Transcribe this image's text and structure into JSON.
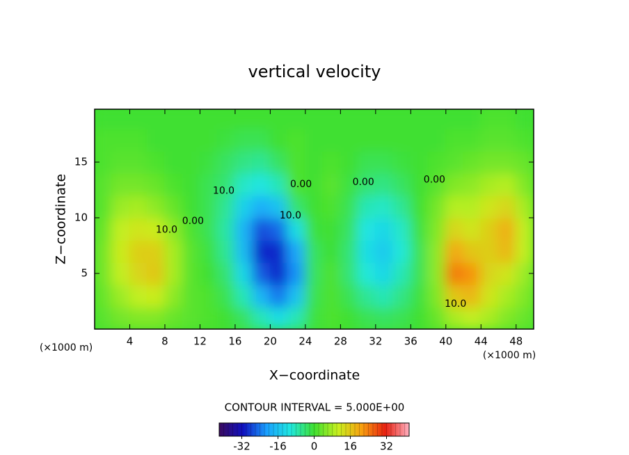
{
  "chart_data": {
    "type": "heatmap",
    "title": "vertical velocity",
    "xlabel": "X−coordinate",
    "ylabel": "Z−coordinate",
    "x_unit": "(×1000 m)",
    "y_unit": "(×1000 m)",
    "annotation": "CONTOUR INTERVAL = 5.000E+00",
    "xlim": [
      0,
      50
    ],
    "ylim": [
      0,
      19.75
    ],
    "xticks": [
      4,
      8,
      12,
      16,
      20,
      24,
      28,
      32,
      36,
      40,
      44,
      48
    ],
    "yticks": [
      5,
      10,
      15
    ],
    "x": [
      1,
      3,
      5,
      7,
      9,
      11,
      13,
      15,
      17,
      19,
      21,
      23,
      25,
      27,
      29,
      31,
      33,
      35,
      37,
      39,
      41,
      43,
      45,
      47,
      49
    ],
    "z": [
      1,
      3,
      5,
      7,
      9,
      11,
      13,
      15,
      17,
      19
    ],
    "cell_size": [
      2,
      2
    ],
    "values": [
      [
        2,
        4,
        5,
        5,
        3,
        2,
        1,
        0,
        -3,
        -8,
        -12,
        -8,
        -1,
        1,
        0,
        -2,
        -3,
        -2,
        0,
        3,
        8,
        10,
        8,
        5,
        3
      ],
      [
        3,
        7,
        10,
        11,
        6,
        2,
        1,
        -2,
        -8,
        -18,
        -24,
        -16,
        -2,
        1,
        -2,
        -6,
        -8,
        -5,
        -1,
        5,
        16,
        18,
        12,
        8,
        5
      ],
      [
        4,
        10,
        14,
        16,
        8,
        2,
        0,
        -4,
        -13,
        -26,
        -30,
        -22,
        -3,
        1,
        -4,
        -10,
        -13,
        -8,
        -2,
        6,
        24,
        22,
        14,
        12,
        7
      ],
      [
        4,
        11,
        15,
        15,
        8,
        2,
        -1,
        -6,
        -17,
        -30,
        -30,
        -20,
        -3,
        0,
        -4,
        -12,
        -15,
        -10,
        -2,
        6,
        20,
        16,
        15,
        18,
        10
      ],
      [
        3,
        10,
        12,
        11,
        6,
        1,
        -2,
        -7,
        -18,
        -27,
        -25,
        -12,
        -1,
        0,
        -3,
        -11,
        -13,
        -9,
        -1,
        5,
        14,
        12,
        15,
        19,
        10
      ],
      [
        2,
        7,
        8,
        6,
        3,
        0,
        -2,
        -6,
        -14,
        -19,
        -16,
        -4,
        0,
        1,
        -2,
        -8,
        -9,
        -6,
        0,
        4,
        9,
        9,
        12,
        14,
        8
      ],
      [
        2,
        4,
        4,
        3,
        1,
        0,
        -2,
        -4,
        -9,
        -11,
        -8,
        1,
        0,
        2,
        -1,
        -4,
        -5,
        -3,
        0,
        2,
        5,
        6,
        8,
        9,
        5
      ],
      [
        1,
        2,
        2,
        1,
        0,
        0,
        -1,
        -3,
        -5,
        -6,
        -3,
        1,
        0,
        1,
        0,
        -2,
        -2,
        -1,
        0,
        1,
        2,
        3,
        4,
        4,
        3
      ],
      [
        1,
        1,
        1,
        0,
        0,
        0,
        0,
        -1,
        -2,
        -2,
        0,
        1,
        0,
        0,
        0,
        0,
        0,
        0,
        0,
        0,
        1,
        1,
        2,
        2,
        1
      ],
      [
        0,
        0,
        0,
        0,
        0,
        0,
        0,
        0,
        0,
        0,
        0,
        0,
        0,
        0,
        0,
        0,
        0,
        0,
        0,
        0,
        0,
        0,
        1,
        1,
        0
      ]
    ],
    "contour_labels": [
      {
        "text": "10.0",
        "x": 8.2,
        "z": 8.9
      },
      {
        "text": "0.00",
        "x": 11.2,
        "z": 9.7
      },
      {
        "text": "10.0",
        "x": 14.7,
        "z": 12.4
      },
      {
        "text": "10.0",
        "x": 22.3,
        "z": 10.2
      },
      {
        "text": "0.00",
        "x": 23.5,
        "z": 13.0
      },
      {
        "text": "0.00",
        "x": 30.6,
        "z": 13.2
      },
      {
        "text": "0.00",
        "x": 38.7,
        "z": 13.4
      },
      {
        "text": "10.0",
        "x": 41.1,
        "z": 2.25
      }
    ],
    "colorbar": {
      "lim": [
        -42,
        42
      ],
      "ticks": [
        -32,
        -16,
        0,
        16,
        32
      ],
      "colors": [
        "#3a0a5e",
        "#1010c0",
        "#1aa0ff",
        "#20e8e0",
        "#40e030",
        "#c8f020",
        "#f8a010",
        "#e82010",
        "#ffb0c0"
      ]
    }
  }
}
